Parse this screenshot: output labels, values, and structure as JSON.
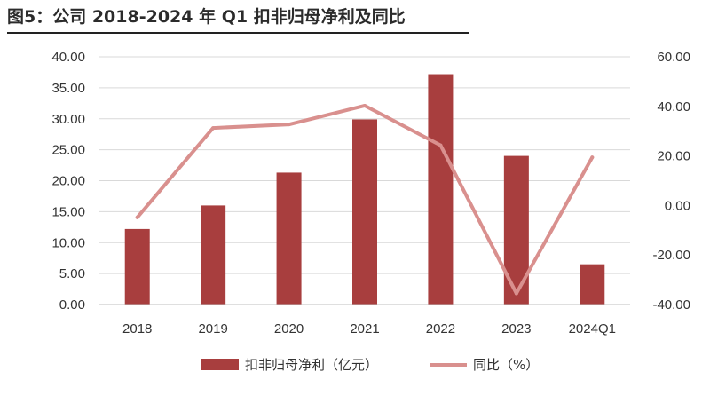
{
  "title": "图5：公司 2018-2024 年 Q1 扣非归母净利及同比",
  "chart_data": {
    "type": "bar",
    "categories": [
      "2018",
      "2019",
      "2020",
      "2021",
      "2022",
      "2023",
      "2024Q1"
    ],
    "series": [
      {
        "name": "扣非归母净利（亿元）",
        "type": "bar",
        "axis": "left",
        "color": "#a83e3e",
        "values": [
          12.2,
          16.0,
          21.3,
          29.9,
          37.2,
          24.0,
          6.5
        ]
      },
      {
        "name": "同比（%）",
        "type": "line",
        "axis": "right",
        "color": "#d9908e",
        "values": [
          -4.8,
          31.3,
          32.7,
          40.3,
          24.3,
          -35.5,
          19.4
        ]
      }
    ],
    "y_left": {
      "ylim": [
        0,
        40
      ],
      "ticks": [
        "0.00",
        "5.00",
        "10.00",
        "15.00",
        "20.00",
        "25.00",
        "30.00",
        "35.00",
        "40.00"
      ]
    },
    "y_right": {
      "ylim": [
        -40,
        60
      ],
      "ticks": [
        "-40.00",
        "-20.00",
        "0.00",
        "20.00",
        "40.00",
        "60.00"
      ]
    },
    "grid": true,
    "legend_position": "bottom"
  }
}
